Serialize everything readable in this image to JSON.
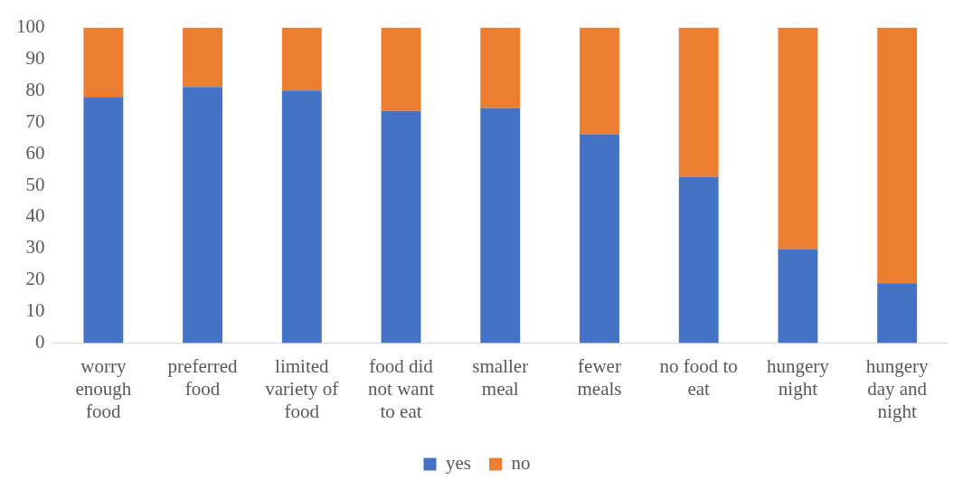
{
  "chart_data": {
    "type": "bar",
    "stacked": true,
    "categories": [
      "worry enough food",
      "preferred food",
      "limited variety of food",
      "food did not want to eat",
      "smaller meal",
      "fewer meals",
      "no food to eat",
      "hungery night",
      "hungery day and night"
    ],
    "series": [
      {
        "name": "yes",
        "color": "#4472c4",
        "values": [
          78,
          81.2,
          80,
          73.6,
          74.5,
          66.2,
          52.7,
          29.8,
          19
        ]
      },
      {
        "name": "no",
        "color": "#ed7d31",
        "values": [
          22,
          18.8,
          20,
          26.4,
          25.5,
          33.8,
          47.3,
          70.2,
          81
        ]
      }
    ],
    "ylim": [
      0,
      100
    ],
    "yticks": [
      0,
      10,
      20,
      30,
      40,
      50,
      60,
      70,
      80,
      90,
      100
    ],
    "grid": false,
    "legend": "bottom"
  }
}
